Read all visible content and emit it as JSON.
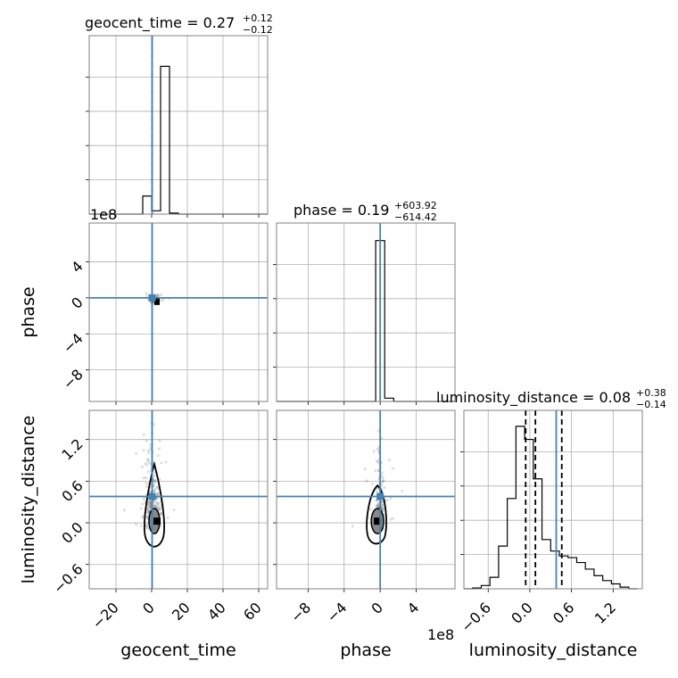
{
  "chart_data": {
    "type": "corner",
    "parameters": [
      "geocent_time",
      "phase",
      "luminosity_distance"
    ],
    "truths": {
      "geocent_time": 0.27,
      "phase": 0.19,
      "luminosity_distance": 0.38
    },
    "diagonal_titles": [
      {
        "param": "geocent_time",
        "text": "geocent_time = 0.27",
        "plus": "+0.12",
        "minus": "−0.12"
      },
      {
        "param": "phase",
        "text": "phase = 0.19",
        "plus": "+603.92",
        "minus": "−614.42"
      },
      {
        "param": "luminosity_distance",
        "text": "luminosity_distance = 0.08",
        "plus": "+0.38",
        "minus": "−0.14"
      }
    ],
    "offset_labels": {
      "phase_y": "1e8",
      "phase_x": "1e8"
    },
    "axes": {
      "geocent_time": {
        "label": "geocent_time",
        "lim": [
          -35,
          65
        ],
        "ticks": [
          -20,
          0,
          20,
          40,
          60
        ],
        "tick_labels": [
          "−20",
          "0",
          "20",
          "40",
          "60"
        ]
      },
      "phase": {
        "label": "phase",
        "lim": [
          -11.5,
          8.3
        ],
        "ticks": [
          -8,
          -4,
          0,
          4
        ],
        "tick_labels": [
          "−8",
          "−4",
          "0",
          "4"
        ]
      },
      "luminosity_distance": {
        "label": "luminosity_distance",
        "lim": [
          -0.95,
          1.62
        ],
        "ticks": [
          -0.6,
          0.0,
          0.6,
          1.2
        ],
        "tick_labels": [
          "−0.6",
          "0.0",
          "0.6",
          "1.2"
        ]
      }
    },
    "hist_geocent_time": {
      "edges": [
        -35,
        -30,
        -25,
        -20,
        -15,
        -10,
        -5,
        0,
        5,
        10,
        15,
        20,
        25,
        30,
        35,
        40,
        45,
        50,
        55,
        60,
        65
      ],
      "counts": [
        0,
        0,
        0,
        0,
        0,
        0,
        0.11,
        0.02,
        0.9,
        0.006,
        0,
        0,
        0,
        0,
        0,
        0,
        0,
        0,
        0,
        0
      ],
      "quantiles": [
        0.15,
        0.27,
        0.39
      ]
    },
    "hist_phase": {
      "edges": [
        -11.5,
        -10.5,
        -9.5,
        -8.5,
        -7.5,
        -6.5,
        -5.5,
        -4.5,
        -3.5,
        -2.5,
        -1.5,
        -0.5,
        0.5,
        1.5,
        2.5,
        3.5,
        4.5,
        5.5,
        6.5,
        7.5,
        8.3
      ],
      "counts": [
        0,
        0,
        0,
        0,
        0,
        0,
        0,
        0,
        0,
        0,
        0,
        0.98,
        0.02,
        0,
        0,
        0,
        0,
        0,
        0,
        0
      ],
      "quantiles": [
        -6.14e-06,
        1.9e-09,
        6.04e-06
      ]
    },
    "hist_luminosity_distance": {
      "edges": [
        -0.95,
        -0.825,
        -0.7,
        -0.575,
        -0.45,
        -0.325,
        -0.2,
        -0.075,
        0.05,
        0.175,
        0.3,
        0.425,
        0.55,
        0.675,
        0.8,
        0.925,
        1.05,
        1.175,
        1.3,
        1.425,
        1.55
      ],
      "counts": [
        0,
        0.005,
        0.02,
        0.07,
        0.26,
        0.55,
        0.99,
        0.91,
        0.67,
        0.3,
        0.23,
        0.2,
        0.19,
        0.16,
        0.12,
        0.08,
        0.05,
        0.03,
        0.01,
        0
      ],
      "quantiles": [
        -0.06,
        0.08,
        0.46
      ]
    }
  }
}
